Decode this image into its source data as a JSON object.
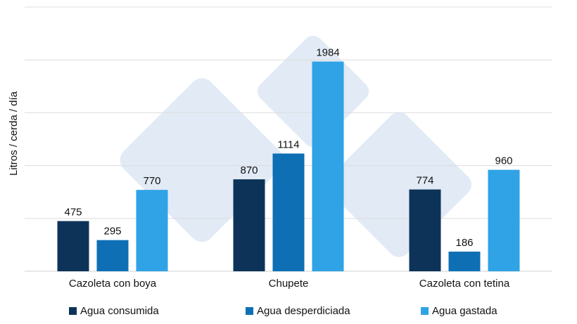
{
  "chart_data": {
    "type": "bar",
    "title": "",
    "xlabel": "",
    "ylabel": "Litros / cerda / día",
    "categories": [
      "Cazoleta con boya",
      "Chupete",
      "Cazoleta con tetina"
    ],
    "series": [
      {
        "name": "Agua consumida",
        "color": "#0d3358",
        "values": [
          475,
          870,
          774
        ]
      },
      {
        "name": "Agua desperdiciada",
        "color": "#0e6fb5",
        "values": [
          295,
          1114,
          186
        ]
      },
      {
        "name": "Agua gastada",
        "color": "#2fa3e6",
        "values": [
          770,
          1984,
          960
        ]
      }
    ],
    "ylim": [
      0,
      2500
    ],
    "grid": true,
    "legend_position": "bottom",
    "data_labels": true
  },
  "colors": {
    "gridline": "#dddddd",
    "baseline": "#d0d0d0",
    "watermark": "#dbe6f3"
  }
}
